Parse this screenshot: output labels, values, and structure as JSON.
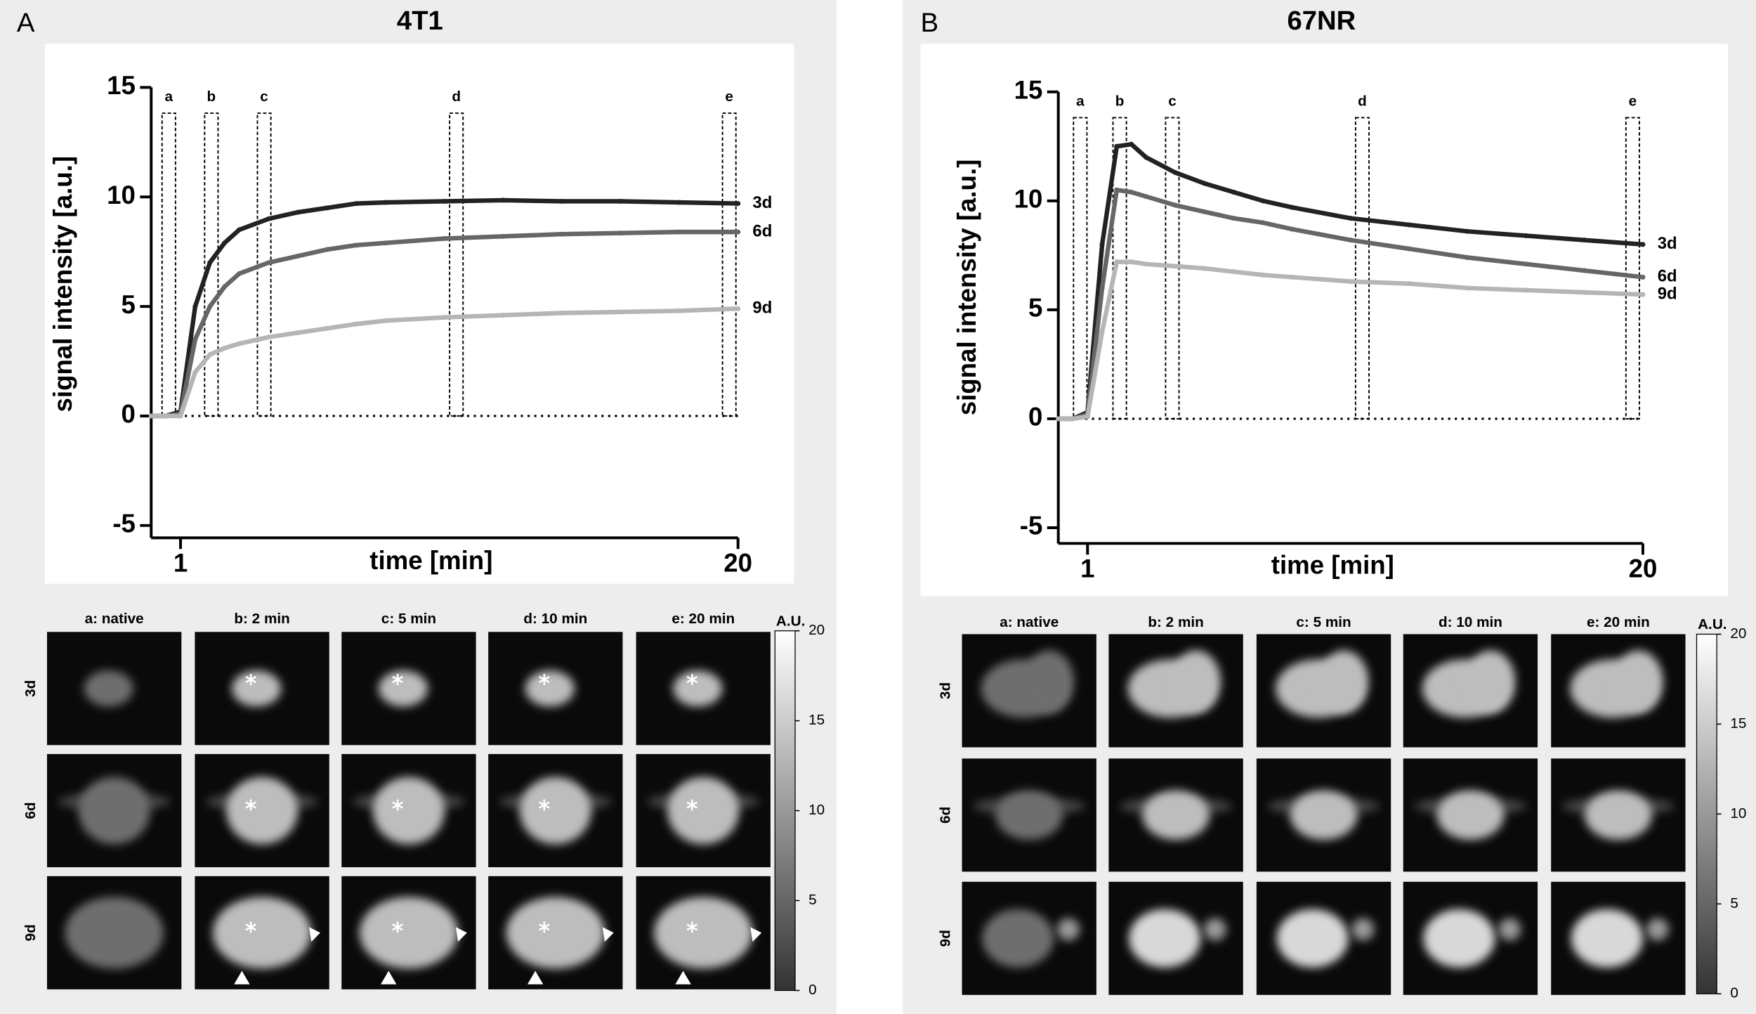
{
  "chart_data": [
    {
      "type": "line",
      "title": "4T1",
      "xlabel": "time [min]",
      "ylabel": "signal intensity [a.u.]",
      "x": [
        0,
        0.5,
        1,
        1.5,
        2,
        2.5,
        3,
        4,
        5,
        6,
        7,
        8,
        10,
        12,
        14,
        16,
        18,
        20
      ],
      "series": [
        {
          "name": "3d",
          "color": "#222222",
          "values": [
            0,
            0,
            0.2,
            5,
            7,
            7.9,
            8.5,
            9,
            9.3,
            9.5,
            9.7,
            9.75,
            9.8,
            9.85,
            9.8,
            9.8,
            9.75,
            9.7
          ]
        },
        {
          "name": "6d",
          "color": "#666666",
          "values": [
            0,
            0,
            0.1,
            3.5,
            5,
            5.9,
            6.5,
            7,
            7.3,
            7.6,
            7.8,
            7.9,
            8.1,
            8.2,
            8.3,
            8.35,
            8.4,
            8.4
          ]
        },
        {
          "name": "9d",
          "color": "#b5b5b5",
          "values": [
            0,
            0,
            0,
            2,
            2.8,
            3.1,
            3.3,
            3.6,
            3.8,
            4,
            4.2,
            4.35,
            4.5,
            4.6,
            4.7,
            4.75,
            4.8,
            4.9
          ]
        }
      ],
      "xlim": [
        0,
        20
      ],
      "xticks": [
        1,
        20
      ],
      "ylim": [
        -5,
        15
      ],
      "yticks": [
        -5,
        0,
        5,
        10,
        15
      ],
      "hline": 0,
      "regions": [
        {
          "label": "a",
          "x": 0.6
        },
        {
          "label": "b",
          "x": 2.05
        },
        {
          "label": "c",
          "x": 3.85
        },
        {
          "label": "d",
          "x": 10.4
        },
        {
          "label": "e",
          "x": 19.7
        }
      ]
    },
    {
      "type": "line",
      "title": "67NR",
      "xlabel": "time [min]",
      "ylabel": "signal intensity [a.u.]",
      "x": [
        0,
        0.5,
        1,
        1.5,
        2,
        2.5,
        3,
        4,
        5,
        6,
        7,
        8,
        10,
        12,
        14,
        16,
        18,
        20
      ],
      "series": [
        {
          "name": "3d",
          "color": "#222222",
          "values": [
            0,
            0,
            0.3,
            8,
            12.5,
            12.6,
            12,
            11.3,
            10.8,
            10.4,
            10,
            9.7,
            9.2,
            8.9,
            8.6,
            8.4,
            8.2,
            8
          ]
        },
        {
          "name": "6d",
          "color": "#666666",
          "values": [
            0,
            0,
            0.2,
            6,
            10.5,
            10.4,
            10.2,
            9.8,
            9.5,
            9.2,
            9,
            8.7,
            8.2,
            7.8,
            7.4,
            7.1,
            6.8,
            6.5
          ]
        },
        {
          "name": "9d",
          "color": "#b5b5b5",
          "values": [
            0,
            0,
            0.1,
            4,
            7.2,
            7.2,
            7.1,
            7,
            6.9,
            6.75,
            6.6,
            6.5,
            6.3,
            6.2,
            6,
            5.9,
            5.8,
            5.7
          ]
        }
      ],
      "xlim": [
        0,
        20
      ],
      "xticks": [
        1,
        20
      ],
      "ylim": [
        -5,
        15
      ],
      "yticks": [
        -5,
        0,
        5,
        10,
        15
      ],
      "hline": 0,
      "regions": [
        {
          "label": "a",
          "x": 0.75
        },
        {
          "label": "b",
          "x": 2.1
        },
        {
          "label": "c",
          "x": 3.9
        },
        {
          "label": "d",
          "x": 10.4
        },
        {
          "label": "e",
          "x": 19.65
        }
      ]
    }
  ],
  "panels": [
    {
      "letter": "A",
      "columns": [
        "a: native",
        "b: 2 min",
        "c: 5 min",
        "d: 10 min",
        "e: 20 min"
      ],
      "rows": [
        "3d",
        "6d",
        "9d"
      ],
      "colorbar": {
        "label": "A.U.",
        "lim": [
          0,
          20
        ],
        "ticks": [
          0,
          5,
          10,
          15,
          20
        ]
      }
    },
    {
      "letter": "B",
      "columns": [
        "a: native",
        "b: 2 min",
        "c: 5 min",
        "d: 10 min",
        "e: 20 min"
      ],
      "rows": [
        "3d",
        "6d",
        "9d"
      ],
      "colorbar": {
        "label": "A.U.",
        "lim": [
          0,
          20
        ],
        "ticks": [
          0,
          5,
          10,
          15,
          20
        ]
      }
    }
  ]
}
